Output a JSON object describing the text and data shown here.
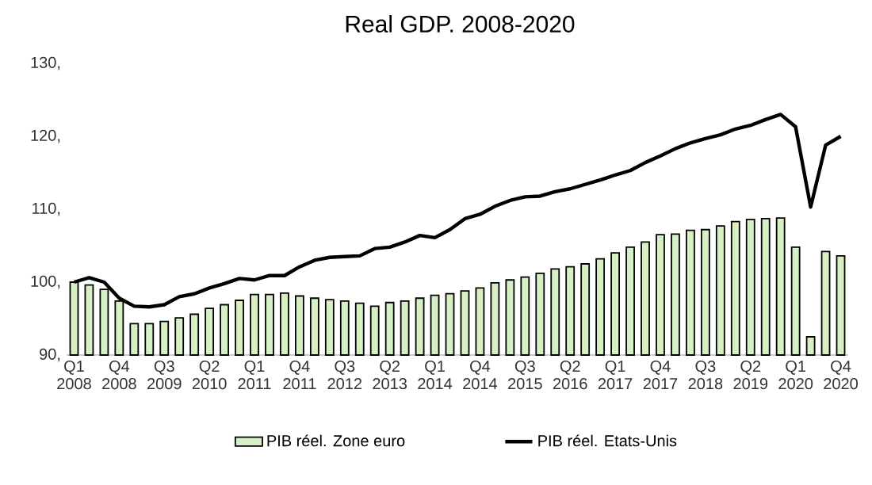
{
  "chart_data": {
    "type": "bar",
    "title": "Real GDP. 2008-2020",
    "categories": [
      "Q1 2008",
      null,
      null,
      "Q4 2008",
      null,
      null,
      "Q3 2009",
      null,
      null,
      "Q2 2010",
      null,
      null,
      "Q1 2011",
      null,
      null,
      "Q4 2011",
      null,
      null,
      "Q3 2012",
      null,
      null,
      "Q2 2013",
      null,
      null,
      "Q1 2014",
      null,
      null,
      "Q4 2014",
      null,
      null,
      "Q3 2015",
      null,
      null,
      "Q2 2016",
      null,
      null,
      "Q1 2017",
      null,
      null,
      "Q4 2017",
      null,
      null,
      "Q3 2018",
      null,
      null,
      "Q2 2019",
      null,
      null,
      "Q1 2020",
      null,
      null,
      "Q4 2020"
    ],
    "series": [
      {
        "name": "PIB réel. Zone euro",
        "color": "#d6efc4",
        "values": [
          100.0,
          99.6,
          99.0,
          97.4,
          94.3,
          94.3,
          94.6,
          95.1,
          95.6,
          96.4,
          96.9,
          97.5,
          98.3,
          98.3,
          98.5,
          98.1,
          97.8,
          97.6,
          97.4,
          97.1,
          96.7,
          97.2,
          97.4,
          97.8,
          98.2,
          98.4,
          98.8,
          99.2,
          99.9,
          100.3,
          100.7,
          101.2,
          101.8,
          102.1,
          102.5,
          103.2,
          104.0,
          104.8,
          105.5,
          106.5,
          106.6,
          107.1,
          107.2,
          107.7,
          108.3,
          108.6,
          108.7,
          108.8,
          104.8,
          92.5,
          104.2,
          103.6
        ]
      },
      {
        "name": "PIB réel. Etats-Unis",
        "type": "line",
        "color": "#000000",
        "values": [
          100.0,
          100.6,
          100.0,
          97.8,
          96.7,
          96.6,
          96.9,
          98.0,
          98.4,
          99.2,
          99.8,
          100.5,
          100.3,
          100.9,
          100.9,
          102.1,
          103.0,
          103.4,
          103.5,
          103.6,
          104.6,
          104.8,
          105.5,
          106.4,
          106.1,
          107.2,
          108.7,
          109.3,
          110.4,
          111.2,
          111.7,
          111.8,
          112.4,
          112.8,
          113.4,
          114.0,
          114.7,
          115.3,
          116.4,
          117.3,
          118.3,
          119.1,
          119.7,
          120.2,
          121.0,
          121.5,
          122.3,
          123.0,
          121.3,
          110.3,
          118.8,
          120.0
        ]
      }
    ],
    "ylim": [
      90,
      130
    ],
    "yticks": [
      {
        "value": 90,
        "label": "90,"
      },
      {
        "value": 100,
        "label": "100,"
      },
      {
        "value": 110,
        "label": "110,"
      },
      {
        "value": 120,
        "label": "120,"
      },
      {
        "value": 130,
        "label": "130,"
      }
    ],
    "grid": false,
    "legend": "bottom"
  }
}
